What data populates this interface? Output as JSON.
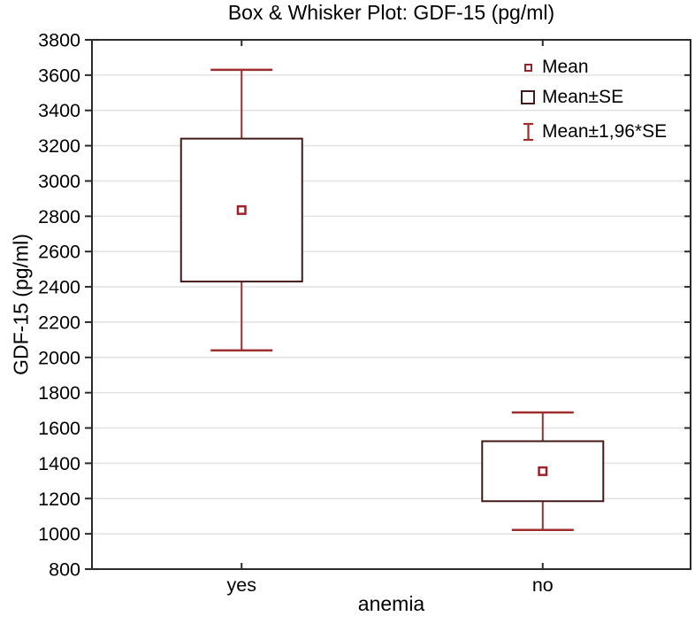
{
  "chart_data": {
    "type": "box",
    "title": "Box & Whisker Plot: GDF-15 (pg/ml)",
    "xlabel": "anemia",
    "ylabel": "GDF-15 (pg/ml)",
    "categories": [
      "yes",
      "no"
    ],
    "ylim": [
      800,
      3800
    ],
    "ytick_step": 200,
    "grid": "horizontal",
    "legend_position": "top-right-inside",
    "series": [
      {
        "category": "yes",
        "mean": 2835,
        "mean_minus_se": 2430,
        "mean_plus_se": 3240,
        "mean_minus_196se": 2040,
        "mean_plus_196se": 3630
      },
      {
        "category": "no",
        "mean": 1355,
        "mean_minus_se": 1185,
        "mean_plus_se": 1525,
        "mean_minus_196se": 1022,
        "mean_plus_196se": 1688
      }
    ],
    "legend": [
      {
        "icon": "mean-marker-icon",
        "label": "Mean"
      },
      {
        "icon": "se-box-icon",
        "label": "Mean±SE"
      },
      {
        "icon": "ci-whisker-icon",
        "label": "Mean±1,96*SE"
      }
    ],
    "colors": {
      "box_border": "#421a1a",
      "whisker": "#9e2d2d",
      "mean_marker": "#9b222b",
      "frame": "#2b2b2b",
      "gridline": "#e3e3e3",
      "background": "#ffffff",
      "text": "#000000"
    }
  }
}
